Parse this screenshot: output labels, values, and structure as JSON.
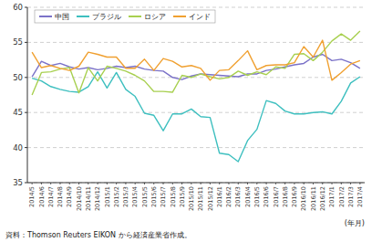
{
  "chart_data": {
    "type": "line",
    "categories": [
      "2014/5",
      "2014/6",
      "2014/7",
      "2014/8",
      "2014/9",
      "2014/10",
      "2014/11",
      "2014/12",
      "2015/1",
      "2015/2",
      "2015/3",
      "2015/4",
      "2015/5",
      "2015/6",
      "2015/7",
      "2015/8",
      "2015/9",
      "2015/10",
      "2015/11",
      "2015/12",
      "2016/1",
      "2016/2",
      "2016/3",
      "2016/4",
      "2016/5",
      "2016/6",
      "2016/7",
      "2016/8",
      "2016/9",
      "2016/10",
      "2016/11",
      "2016/12",
      "2017/1",
      "2017/2",
      "2017/3",
      "2017/4"
    ],
    "series": [
      {
        "name": "中国",
        "color": "#7b72c8",
        "values": [
          50.1,
          52.3,
          51.7,
          52.0,
          51.5,
          51.2,
          51.4,
          51.1,
          51.3,
          51.6,
          51.4,
          51.6,
          51.2,
          51.0,
          50.9,
          50.0,
          49.7,
          50.2,
          50.5,
          50.4,
          50.3,
          50.2,
          50.1,
          50.5,
          50.5,
          51.0,
          51.2,
          51.5,
          51.8,
          52.0,
          52.9,
          53.3,
          52.4,
          52.6,
          52.1,
          51.3
        ]
      },
      {
        "name": "ブラジル",
        "color": "#3dbfbf",
        "values": [
          49.9,
          49.5,
          48.7,
          48.3,
          48.0,
          47.9,
          48.7,
          50.8,
          48.5,
          50.7,
          48.3,
          47.3,
          44.9,
          44.6,
          42.4,
          44.8,
          44.8,
          45.5,
          44.4,
          44.3,
          39.2,
          39.0,
          38.0,
          41.0,
          42.6,
          46.7,
          46.3,
          45.2,
          44.8,
          44.8,
          45.0,
          45.1,
          44.8,
          46.6,
          49.2,
          50.1
        ]
      },
      {
        "name": "ロシア",
        "color": "#a8d050",
        "values": [
          47.5,
          50.7,
          50.8,
          51.2,
          51.4,
          47.8,
          51.4,
          49.5,
          51.6,
          51.3,
          50.9,
          50.3,
          49.5,
          48.0,
          48.0,
          47.9,
          50.3,
          50.0,
          50.5,
          50.1,
          49.8,
          50.0,
          50.9,
          50.3,
          50.8,
          50.4,
          51.5,
          51.3,
          53.3,
          53.4,
          52.4,
          53.6,
          55.2,
          56.2,
          55.3,
          56.6
        ]
      },
      {
        "name": "インド",
        "color": "#f0a030",
        "values": [
          53.6,
          51.4,
          51.7,
          51.3,
          51.0,
          51.6,
          53.6,
          53.3,
          52.9,
          52.9,
          51.3,
          51.3,
          52.6,
          51.0,
          52.7,
          52.3,
          51.5,
          51.7,
          51.3,
          49.6,
          51.0,
          51.1,
          52.4,
          53.8,
          51.1,
          51.7,
          51.8,
          51.8,
          52.1,
          54.4,
          52.9,
          55.3,
          49.6,
          50.7,
          51.9,
          52.4
        ]
      }
    ],
    "ylim": [
      35,
      60
    ],
    "yticks": [
      35,
      40,
      45,
      50,
      55,
      60
    ],
    "grid": true,
    "legend": "upper left",
    "x_label": "(年月)",
    "source": "資料：Thomson Reuters EIKON から経済産業省作成。"
  }
}
